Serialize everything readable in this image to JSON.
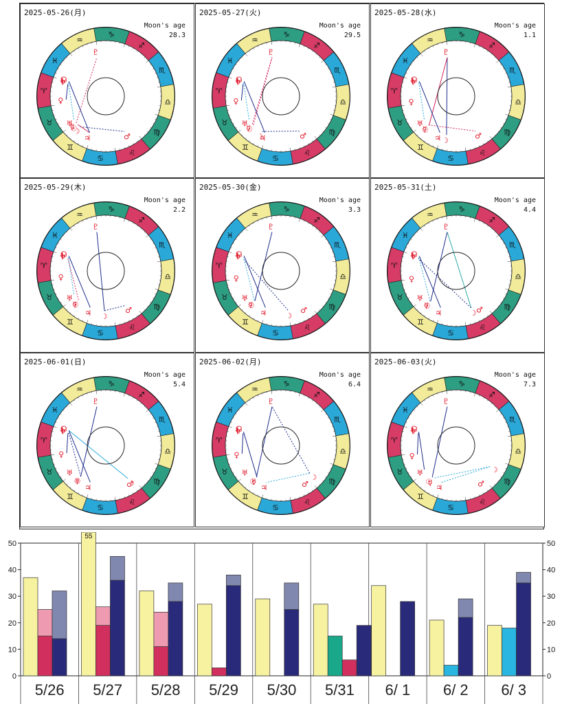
{
  "moon_age_label": "Moon's age",
  "sign_glyphs": [
    "♈",
    "♉",
    "♊",
    "♋",
    "♌",
    "♍",
    "♎",
    "♏",
    "♐",
    "♑",
    "♒",
    "♓"
  ],
  "sign_colors": [
    "#d63c66",
    "#2e9e83",
    "#f2ec9a",
    "#2aa8d8",
    "#d63c66",
    "#2e9e83",
    "#f2ec9a",
    "#2aa8d8",
    "#d63c66",
    "#2e9e83",
    "#f2ec9a",
    "#2aa8d8"
  ],
  "charts": [
    {
      "date": "2025-05-26(月)",
      "moon_age": "28.3",
      "planets": [
        {
          "g": "☽",
          "lon": 70
        },
        {
          "g": "☉",
          "lon": 65
        },
        {
          "g": "☿",
          "lon": 62
        },
        {
          "g": "♀",
          "lon": 25
        },
        {
          "g": "♂",
          "lon": 138
        },
        {
          "g": "♃",
          "lon": 86
        },
        {
          "g": "♄",
          "lon": 0
        },
        {
          "g": "♅",
          "lon": 57
        },
        {
          "g": "♆",
          "lon": 2
        },
        {
          "g": "♇",
          "lon": 303
        },
        {
          "g": "☊",
          "lon": 358
        }
      ],
      "aspects": [
        {
          "a": 0,
          "b": 4,
          "c": "#1d2c8a",
          "d": true
        },
        {
          "a": 1,
          "b": 5,
          "c": "#d12457",
          "d": false
        },
        {
          "a": 2,
          "b": 9,
          "c": "#d12457",
          "d": true
        },
        {
          "a": 3,
          "b": 8,
          "c": "#1d2c8a",
          "d": false
        },
        {
          "a": 6,
          "b": 7,
          "c": "#2aa8d8",
          "d": true
        },
        {
          "a": 5,
          "b": 10,
          "c": "#1d2c8a",
          "d": false
        }
      ]
    },
    {
      "date": "2025-05-27(火)",
      "moon_age": "29.5",
      "planets": [
        {
          "g": "☽",
          "lon": 82
        },
        {
          "g": "☉",
          "lon": 66
        },
        {
          "g": "☿",
          "lon": 64
        },
        {
          "g": "♀",
          "lon": 26
        },
        {
          "g": "♂",
          "lon": 139
        },
        {
          "g": "♃",
          "lon": 86
        },
        {
          "g": "♄",
          "lon": 0
        },
        {
          "g": "♅",
          "lon": 57
        },
        {
          "g": "♆",
          "lon": 2
        },
        {
          "g": "♇",
          "lon": 303
        },
        {
          "g": "☊",
          "lon": 358
        }
      ],
      "aspects": [
        {
          "a": 0,
          "b": 4,
          "c": "#1d2c8a",
          "d": true
        },
        {
          "a": 1,
          "b": 9,
          "c": "#d12457",
          "d": true
        },
        {
          "a": 2,
          "b": 9,
          "c": "#d12457",
          "d": true
        },
        {
          "a": 3,
          "b": 8,
          "c": "#1d2c8a",
          "d": false
        },
        {
          "a": 6,
          "b": 7,
          "c": "#2aa8d8",
          "d": true
        },
        {
          "a": 5,
          "b": 10,
          "c": "#1d2c8a",
          "d": false
        }
      ]
    },
    {
      "date": "2025-05-28(水)",
      "moon_age": "1.1",
      "planets": [
        {
          "g": "☽",
          "lon": 96
        },
        {
          "g": "☉",
          "lon": 67
        },
        {
          "g": "☿",
          "lon": 66
        },
        {
          "g": "♀",
          "lon": 27
        },
        {
          "g": "♂",
          "lon": 139
        },
        {
          "g": "♃",
          "lon": 86
        },
        {
          "g": "♄",
          "lon": 0
        },
        {
          "g": "♅",
          "lon": 57
        },
        {
          "g": "♆",
          "lon": 2
        },
        {
          "g": "♇",
          "lon": 303
        },
        {
          "g": "☊",
          "lon": 358
        }
      ],
      "aspects": [
        {
          "a": 0,
          "b": 9,
          "c": "#1d2c8a",
          "d": false
        },
        {
          "a": 1,
          "b": 9,
          "c": "#d12457",
          "d": false
        },
        {
          "a": 2,
          "b": 4,
          "c": "#d12457",
          "d": true
        },
        {
          "a": 6,
          "b": 7,
          "c": "#2aa8d8",
          "d": true
        },
        {
          "a": 5,
          "b": 10,
          "c": "#1d2c8a",
          "d": false
        }
      ]
    },
    {
      "date": "2025-05-29(木)",
      "moon_age": "2.2",
      "planets": [
        {
          "g": "☽",
          "lon": 108
        },
        {
          "g": "☉",
          "lon": 68
        },
        {
          "g": "☿",
          "lon": 67
        },
        {
          "g": "♀",
          "lon": 28
        },
        {
          "g": "♂",
          "lon": 140
        },
        {
          "g": "♃",
          "lon": 87
        },
        {
          "g": "♄",
          "lon": 0
        },
        {
          "g": "♅",
          "lon": 57
        },
        {
          "g": "♆",
          "lon": 2
        },
        {
          "g": "♇",
          "lon": 303
        },
        {
          "g": "☊",
          "lon": 358
        }
      ],
      "aspects": [
        {
          "a": 0,
          "b": 4,
          "c": "#1d2c8a",
          "d": true
        },
        {
          "a": 0,
          "b": 9,
          "c": "#1d2c8a",
          "d": false
        },
        {
          "a": 2,
          "b": 8,
          "c": "#d12457",
          "d": true
        },
        {
          "a": 6,
          "b": 7,
          "c": "#2aa8d8",
          "d": true
        },
        {
          "a": 5,
          "b": 10,
          "c": "#1d2c8a",
          "d": false
        }
      ]
    },
    {
      "date": "2025-05-30(金)",
      "moon_age": "3.3",
      "planets": [
        {
          "g": "☽",
          "lon": 120
        },
        {
          "g": "☉",
          "lon": 69
        },
        {
          "g": "☿",
          "lon": 68
        },
        {
          "g": "♀",
          "lon": 29
        },
        {
          "g": "♂",
          "lon": 140
        },
        {
          "g": "♃",
          "lon": 87
        },
        {
          "g": "♄",
          "lon": 0
        },
        {
          "g": "♅",
          "lon": 57
        },
        {
          "g": "♆",
          "lon": 2
        },
        {
          "g": "♇",
          "lon": 303
        },
        {
          "g": "☊",
          "lon": 358
        }
      ],
      "aspects": [
        {
          "a": 1,
          "b": 9,
          "c": "#1d2c8a",
          "d": false
        },
        {
          "a": 0,
          "b": 8,
          "c": "#1d2c8a",
          "d": true
        },
        {
          "a": 2,
          "b": 6,
          "c": "#2aa8d8",
          "d": true
        },
        {
          "a": 5,
          "b": 10,
          "c": "#1d2c8a",
          "d": false
        }
      ]
    },
    {
      "date": "2025-05-31(土)",
      "moon_age": "4.4",
      "planets": [
        {
          "g": "☽",
          "lon": 132
        },
        {
          "g": "☉",
          "lon": 70
        },
        {
          "g": "☿",
          "lon": 69
        },
        {
          "g": "♀",
          "lon": 30
        },
        {
          "g": "♂",
          "lon": 141
        },
        {
          "g": "♃",
          "lon": 87
        },
        {
          "g": "♄",
          "lon": 0
        },
        {
          "g": "♅",
          "lon": 57
        },
        {
          "g": "♆",
          "lon": 2
        },
        {
          "g": "♇",
          "lon": 303
        },
        {
          "g": "☊",
          "lon": 358
        }
      ],
      "aspects": [
        {
          "a": 0,
          "b": 9,
          "c": "#2aa8a0",
          "d": false
        },
        {
          "a": 1,
          "b": 9,
          "c": "#1d2c8a",
          "d": false
        },
        {
          "a": 0,
          "b": 8,
          "c": "#1d2c8a",
          "d": true
        },
        {
          "a": 2,
          "b": 6,
          "c": "#2aa8d8",
          "d": true
        },
        {
          "a": 5,
          "b": 10,
          "c": "#1d2c8a",
          "d": false
        }
      ]
    },
    {
      "date": "2025-06-01(日)",
      "moon_age": "5.4",
      "planets": [
        {
          "g": "☽",
          "lon": 144
        },
        {
          "g": "☉",
          "lon": 71
        },
        {
          "g": "☿",
          "lon": 71
        },
        {
          "g": "♀",
          "lon": 31
        },
        {
          "g": "♂",
          "lon": 142
        },
        {
          "g": "♃",
          "lon": 87
        },
        {
          "g": "♄",
          "lon": 0
        },
        {
          "g": "♅",
          "lon": 57
        },
        {
          "g": "♆",
          "lon": 2
        },
        {
          "g": "♇",
          "lon": 303
        },
        {
          "g": "☊",
          "lon": 358
        }
      ],
      "aspects": [
        {
          "a": 1,
          "b": 9,
          "c": "#1d2c8a",
          "d": false
        },
        {
          "a": 0,
          "b": 10,
          "c": "#2aa8d8",
          "d": false
        },
        {
          "a": 3,
          "b": 8,
          "c": "#1d2c8a",
          "d": false
        },
        {
          "a": 2,
          "b": 6,
          "c": "#1d2c8a",
          "d": true
        },
        {
          "a": 5,
          "b": 10,
          "c": "#1d2c8a",
          "d": false
        }
      ]
    },
    {
      "date": "2025-06-02(月)",
      "moon_age": "6.4",
      "planets": [
        {
          "g": "☽",
          "lon": 156
        },
        {
          "g": "☉",
          "lon": 72
        },
        {
          "g": "☿",
          "lon": 73
        },
        {
          "g": "♀",
          "lon": 32
        },
        {
          "g": "♂",
          "lon": 142
        },
        {
          "g": "♃",
          "lon": 88
        },
        {
          "g": "♄",
          "lon": 0
        },
        {
          "g": "♅",
          "lon": 57
        },
        {
          "g": "♆",
          "lon": 2
        },
        {
          "g": "♇",
          "lon": 303
        },
        {
          "g": "☊",
          "lon": 358
        }
      ],
      "aspects": [
        {
          "a": 0,
          "b": 9,
          "c": "#1d2c8a",
          "d": true
        },
        {
          "a": 1,
          "b": 9,
          "c": "#1d2c8a",
          "d": false
        },
        {
          "a": 0,
          "b": 5,
          "c": "#2aa8d8",
          "d": true
        },
        {
          "a": 3,
          "b": 8,
          "c": "#1d2c8a",
          "d": false
        },
        {
          "a": 2,
          "b": 6,
          "c": "#1d2c8a",
          "d": false
        }
      ]
    },
    {
      "date": "2025-06-03(火)",
      "moon_age": "7.3",
      "planets": [
        {
          "g": "☽",
          "lon": 168
        },
        {
          "g": "☉",
          "lon": 73
        },
        {
          "g": "☿",
          "lon": 75
        },
        {
          "g": "♀",
          "lon": 33
        },
        {
          "g": "♂",
          "lon": 143
        },
        {
          "g": "♃",
          "lon": 88
        },
        {
          "g": "♄",
          "lon": 0
        },
        {
          "g": "♅",
          "lon": 57
        },
        {
          "g": "♆",
          "lon": 2
        },
        {
          "g": "♇",
          "lon": 303
        },
        {
          "g": "☊",
          "lon": 358
        }
      ],
      "aspects": [
        {
          "a": 1,
          "b": 9,
          "c": "#1d2c8a",
          "d": false
        },
        {
          "a": 0,
          "b": 5,
          "c": "#2aa8d8",
          "d": true
        },
        {
          "a": 0,
          "b": 2,
          "c": "#2aa8d8",
          "d": true
        },
        {
          "a": 3,
          "b": 8,
          "c": "#1d2c8a",
          "d": false
        },
        {
          "a": 6,
          "b": 7,
          "c": "#1d2c8a",
          "d": false
        }
      ]
    }
  ],
  "chart_data": {
    "type": "bar",
    "categories": [
      "5/26",
      "5/27",
      "5/28",
      "5/29",
      "5/30",
      "5/31",
      "6/ 1",
      "6/ 2",
      "6/ 3"
    ],
    "ylim": [
      0,
      50
    ],
    "yticks": [
      0,
      10,
      20,
      30,
      40,
      50
    ],
    "overflow_label": "55",
    "bars": [
      {
        "group": 0,
        "slot": 0,
        "bottom": 37,
        "top": null,
        "cb": "#f7f2a0",
        "ct": null
      },
      {
        "group": 0,
        "slot": 1,
        "bottom": 15,
        "top": 25,
        "cb": "#d12f5e",
        "ct": "#ee9ab0"
      },
      {
        "group": 0,
        "slot": 2,
        "bottom": 14,
        "top": 32,
        "cb": "#2a2a7a",
        "ct": "#8088b0"
      },
      {
        "group": 1,
        "slot": 0,
        "bottom": 55,
        "top": null,
        "cb": "#f7f2a0",
        "ct": null,
        "clip": true
      },
      {
        "group": 1,
        "slot": 1,
        "bottom": 19,
        "top": 26,
        "cb": "#d12f5e",
        "ct": "#ee9ab0"
      },
      {
        "group": 1,
        "slot": 2,
        "bottom": 36,
        "top": 45,
        "cb": "#2a2a7a",
        "ct": "#8088b0"
      },
      {
        "group": 2,
        "slot": 0,
        "bottom": 32,
        "top": null,
        "cb": "#f7f2a0",
        "ct": null
      },
      {
        "group": 2,
        "slot": 1,
        "bottom": 11,
        "top": 24,
        "cb": "#d12f5e",
        "ct": "#ee9ab0"
      },
      {
        "group": 2,
        "slot": 2,
        "bottom": 28,
        "top": 35,
        "cb": "#2a2a7a",
        "ct": "#8088b0"
      },
      {
        "group": 3,
        "slot": 0,
        "bottom": 27,
        "top": null,
        "cb": "#f7f2a0",
        "ct": null
      },
      {
        "group": 3,
        "slot": 1,
        "bottom": 3,
        "top": null,
        "cb": "#d12f5e",
        "ct": null
      },
      {
        "group": 3,
        "slot": 2,
        "bottom": 34,
        "top": 38,
        "cb": "#2a2a7a",
        "ct": "#8088b0"
      },
      {
        "group": 4,
        "slot": 0,
        "bottom": 29,
        "top": null,
        "cb": "#f7f2a0",
        "ct": null
      },
      {
        "group": 4,
        "slot": 2,
        "bottom": 25,
        "top": 35,
        "cb": "#2a2a7a",
        "ct": "#8088b0"
      },
      {
        "group": 5,
        "slot": 0,
        "bottom": 27,
        "top": null,
        "cb": "#f7f2a0",
        "ct": null
      },
      {
        "group": 5,
        "slot": 1,
        "bottom": 15,
        "top": null,
        "cb": "#1aa88a",
        "ct": null
      },
      {
        "group": 5,
        "slot": 2,
        "bottom": 6,
        "top": null,
        "cb": "#d12f5e",
        "ct": null
      },
      {
        "group": 5,
        "slot": 3,
        "bottom": 19,
        "top": null,
        "cb": "#2a2a7a",
        "ct": null
      },
      {
        "group": 6,
        "slot": 0,
        "bottom": 34,
        "top": null,
        "cb": "#f7f2a0",
        "ct": null
      },
      {
        "group": 6,
        "slot": 2,
        "bottom": 28,
        "top": null,
        "cb": "#2a2a7a",
        "ct": null
      },
      {
        "group": 7,
        "slot": 0,
        "bottom": 21,
        "top": null,
        "cb": "#f7f2a0",
        "ct": null
      },
      {
        "group": 7,
        "slot": 1,
        "bottom": 4,
        "top": null,
        "cb": "#29b6e0",
        "ct": null
      },
      {
        "group": 7,
        "slot": 2,
        "bottom": 22,
        "top": 29,
        "cb": "#2a2a7a",
        "ct": "#8088b0"
      },
      {
        "group": 8,
        "slot": 0,
        "bottom": 19,
        "top": null,
        "cb": "#f7f2a0",
        "ct": null
      },
      {
        "group": 8,
        "slot": 1,
        "bottom": 18,
        "top": null,
        "cb": "#29b6e0",
        "ct": null
      },
      {
        "group": 8,
        "slot": 2,
        "bottom": 35,
        "top": 39,
        "cb": "#2a2a7a",
        "ct": "#8088b0"
      }
    ]
  }
}
